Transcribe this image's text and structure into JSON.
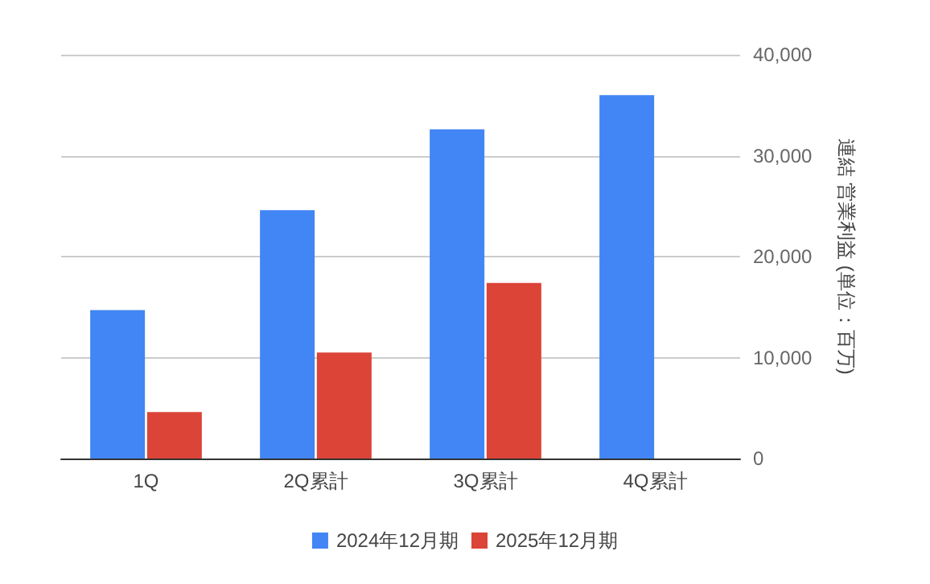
{
  "chart_data": {
    "type": "bar",
    "categories": [
      "1Q",
      "2Q累計",
      "3Q累計",
      "4Q累計"
    ],
    "series": [
      {
        "name": "2024年12月期",
        "color": "#4285f4",
        "values": [
          14700,
          24600,
          32600,
          36000
        ]
      },
      {
        "name": "2025年12月期",
        "color": "#db4437",
        "values": [
          4600,
          10500,
          17400,
          null
        ]
      }
    ],
    "ylabel": "連結 営業利益 (単位：百万)",
    "ylim": [
      0,
      40000
    ],
    "yticks": [
      0,
      {
        "value": 10000,
        "label": "10,000"
      },
      {
        "value": 20000,
        "label": "20,000"
      },
      {
        "value": 30000,
        "label": "30,000"
      },
      {
        "value": 40000,
        "label": "40,000"
      }
    ],
    "grid": "y",
    "legend": "bottom"
  }
}
